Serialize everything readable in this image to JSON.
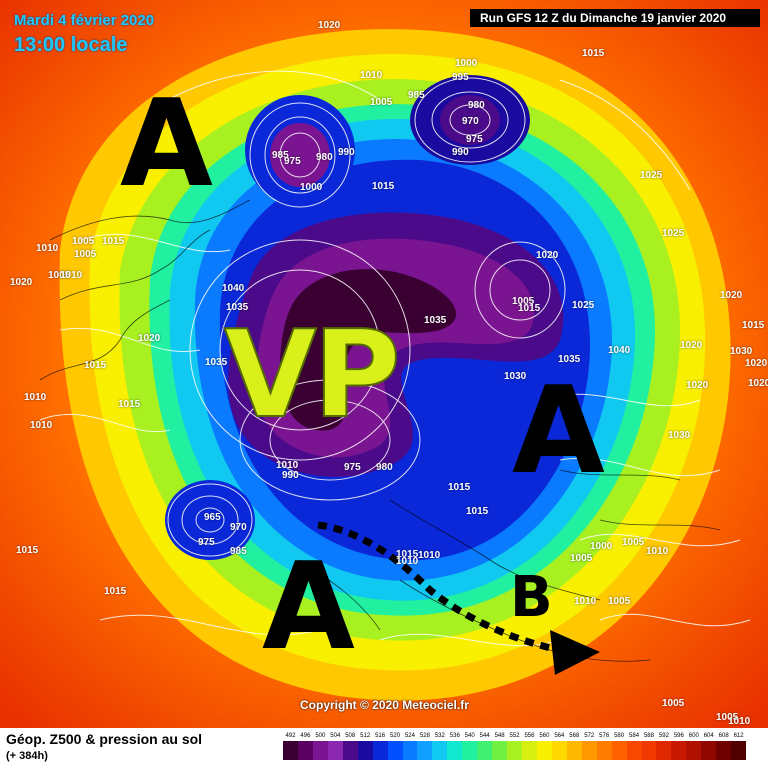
{
  "header": {
    "date": "Mardi 4 février 2020",
    "time": "13:00 locale",
    "run": "Run GFS 12 Z du Dimanche 19 janvier 2020"
  },
  "copyright": "Copyright © 2020 Meteociel.fr",
  "legend": {
    "title": "Géop. Z500 & pression au sol",
    "subtitle": "(+ 384h)",
    "values": [
      "492",
      "496",
      "500",
      "504",
      "508",
      "512",
      "516",
      "520",
      "524",
      "528",
      "532",
      "536",
      "540",
      "544",
      "548",
      "552",
      "556",
      "560",
      "564",
      "568",
      "572",
      "576",
      "580",
      "584",
      "588",
      "592",
      "596",
      "600",
      "604",
      "608",
      "612"
    ],
    "colors": [
      "#3a0032",
      "#5a0060",
      "#7a1490",
      "#8c28b0",
      "#4a0a8a",
      "#1a0aa0",
      "#0a28d8",
      "#0050ff",
      "#0a7aff",
      "#10a0ff",
      "#10c8f0",
      "#10e8d0",
      "#20f0a0",
      "#40f070",
      "#70f040",
      "#a8f020",
      "#d8f010",
      "#f8f000",
      "#ffd800",
      "#ffb800",
      "#ff9800",
      "#ff7c00",
      "#ff6000",
      "#f84800",
      "#f03800",
      "#e02800",
      "#c81800",
      "#b01000",
      "#900800",
      "#700000",
      "#500000"
    ]
  },
  "annotations": {
    "a1": "A",
    "a2": "A",
    "a3": "A",
    "vp": "VP",
    "b": "B"
  },
  "pressure_labels": [
    {
      "text": "1020"
    },
    {
      "text": "1015"
    },
    {
      "text": "1010"
    },
    {
      "text": "1000"
    },
    {
      "text": "995"
    },
    {
      "text": "985"
    },
    {
      "text": "980"
    },
    {
      "text": "970"
    },
    {
      "text": "975"
    },
    {
      "text": "990"
    },
    {
      "text": "1005"
    },
    {
      "text": "1025"
    },
    {
      "text": "985"
    },
    {
      "text": "975"
    },
    {
      "text": "980"
    },
    {
      "text": "990"
    },
    {
      "text": "1000"
    },
    {
      "text": "1015"
    },
    {
      "text": "1005"
    },
    {
      "text": "1010"
    },
    {
      "text": "1015"
    },
    {
      "text": "1005"
    },
    {
      "text": "1005"
    },
    {
      "text": "1010"
    },
    {
      "text": "1040"
    },
    {
      "text": "1035"
    },
    {
      "text": "1020"
    },
    {
      "text": "1035"
    },
    {
      "text": "1015"
    },
    {
      "text": "1015"
    },
    {
      "text": "1010"
    },
    {
      "text": "1010"
    },
    {
      "text": "1020"
    },
    {
      "text": "1005"
    },
    {
      "text": "1015"
    },
    {
      "text": "1025"
    },
    {
      "text": "1035"
    },
    {
      "text": "1030"
    },
    {
      "text": "1035"
    },
    {
      "text": "1040"
    },
    {
      "text": "1030"
    },
    {
      "text": "1020"
    },
    {
      "text": "1020"
    },
    {
      "text": "1010"
    },
    {
      "text": "1015"
    },
    {
      "text": "1020"
    },
    {
      "text": "1030"
    },
    {
      "text": "975"
    },
    {
      "text": "980"
    },
    {
      "text": "990"
    },
    {
      "text": "1010"
    },
    {
      "text": "965"
    },
    {
      "text": "970"
    },
    {
      "text": "975"
    },
    {
      "text": "985"
    },
    {
      "text": "1015"
    },
    {
      "text": "1015"
    },
    {
      "text": "1015"
    },
    {
      "text": "1020"
    },
    {
      "text": "1020"
    },
    {
      "text": "1025"
    },
    {
      "text": "1010"
    },
    {
      "text": "1005"
    },
    {
      "text": "1000"
    },
    {
      "text": "1005"
    },
    {
      "text": "1010"
    },
    {
      "text": "1010"
    },
    {
      "text": "1005"
    },
    {
      "text": "1005"
    },
    {
      "text": "1005"
    },
    {
      "text": "1010"
    },
    {
      "text": "1015"
    },
    {
      "text": "1020"
    },
    {
      "text": "1015"
    }
  ]
}
